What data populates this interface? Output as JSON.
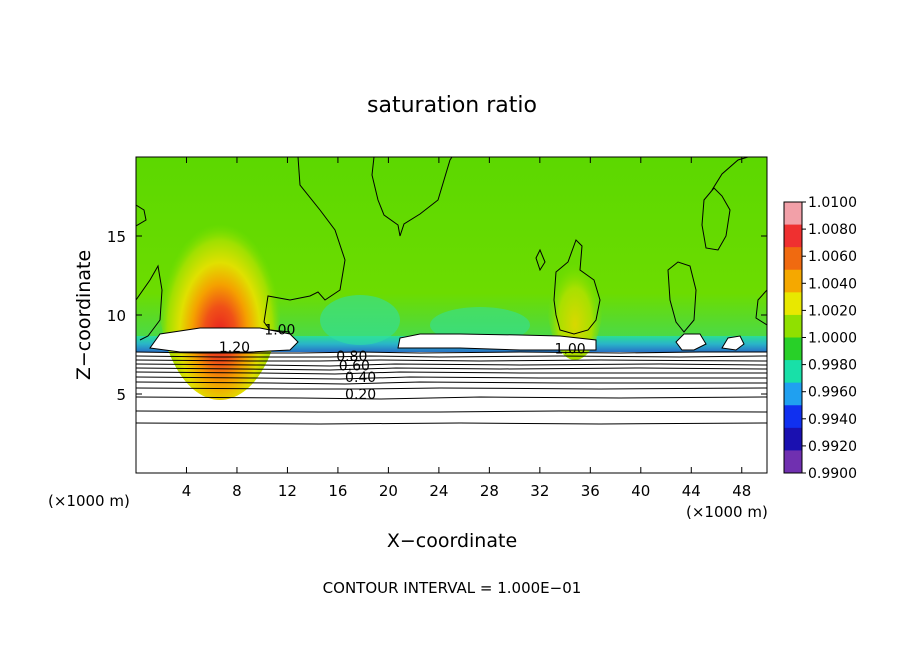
{
  "chart_data": {
    "type": "heatmap",
    "title": "saturation ratio",
    "xlabel": "X−coordinate",
    "ylabel": "Z−coordinate",
    "x_unit_left": "(×1000 m)",
    "x_unit_right": "(×1000 m)",
    "footer": "CONTOUR INTERVAL = 1.000E−01",
    "xlim": [
      0,
      50
    ],
    "ylim": [
      0,
      20
    ],
    "x_ticks": [
      "4",
      "8",
      "12",
      "16",
      "20",
      "24",
      "28",
      "32",
      "36",
      "40",
      "44",
      "48"
    ],
    "x_tick_values": [
      4,
      8,
      12,
      16,
      20,
      24,
      28,
      32,
      36,
      40,
      44,
      48
    ],
    "y_ticks": [
      "5",
      "10",
      "15"
    ],
    "y_tick_values": [
      5,
      10,
      15
    ],
    "colorbar": {
      "labels": [
        "1.0100",
        "1.0080",
        "1.0060",
        "1.0040",
        "1.0020",
        "1.0000",
        "0.9980",
        "0.9960",
        "0.9940",
        "0.9920",
        "0.9900"
      ],
      "colors": [
        "#f2a0a8",
        "#ef3030",
        "#f06a10",
        "#f5a800",
        "#e8e800",
        "#90e000",
        "#28d028",
        "#18e0a8",
        "#20a0f0",
        "#1030f0",
        "#1a10b0",
        "#7030b0"
      ]
    },
    "contour_labels": [
      {
        "text": "0.20",
        "x": 17.8,
        "z": 4.8
      },
      {
        "text": "0.40",
        "x": 17.8,
        "z": 5.9
      },
      {
        "text": "0.60",
        "x": 17.3,
        "z": 6.6
      },
      {
        "text": "0.80",
        "x": 17.1,
        "z": 7.2
      },
      {
        "text": "1.20",
        "x": 7.8,
        "z": 7.8
      },
      {
        "text": "1.00",
        "x": 11.4,
        "z": 8.9
      },
      {
        "text": "1.00",
        "x": 34.4,
        "z": 7.7
      }
    ]
  }
}
